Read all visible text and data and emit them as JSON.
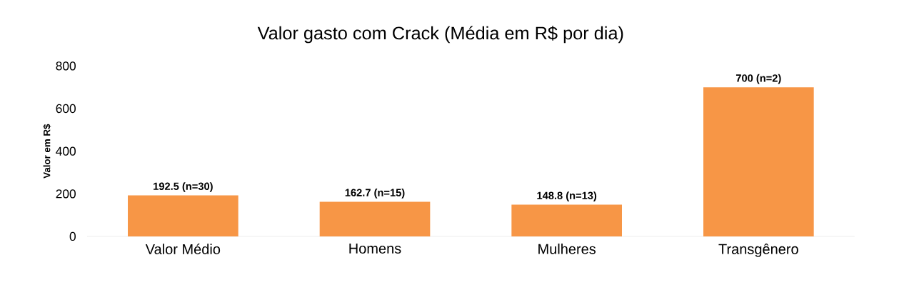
{
  "chart_data": {
    "type": "bar",
    "title": "Valor gasto com Crack (Média em R$ por dia)",
    "ylabel": "Valor em R$",
    "categories": [
      "Valor Médio",
      "Homens",
      "Mulheres",
      "Transgênero"
    ],
    "values": [
      192.5,
      162.7,
      148.8,
      700
    ],
    "value_labels": [
      "192.5 (n=30)",
      "162.7 (n=15)",
      "148.8 (n=13)",
      "700 (n=2)"
    ],
    "color": "#f79646",
    "ylim": [
      0,
      800
    ],
    "yticks": [
      0,
      200,
      400,
      600,
      800
    ]
  }
}
